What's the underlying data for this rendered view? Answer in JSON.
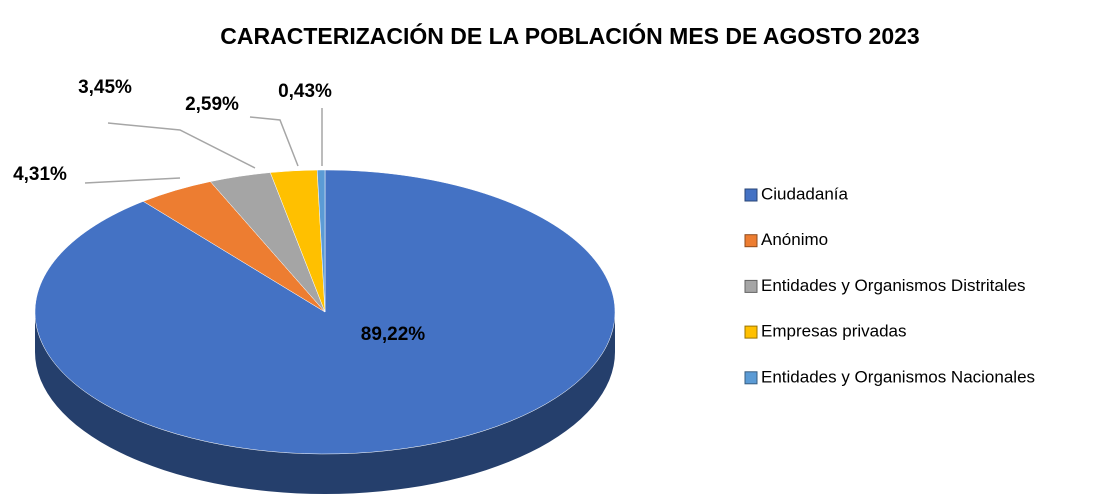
{
  "chart_data": {
    "type": "pie",
    "title": "CARACTERIZACIÓN DE LA POBLACIÓN MES DE AGOSTO 2023",
    "categories": [
      "Ciudadanía",
      "Anónimo",
      "Entidades y Organismos Distritales",
      "Empresas privadas",
      "Entidades y Organismos Nacionales"
    ],
    "values": [
      89.22,
      4.31,
      3.45,
      2.59,
      0.43
    ],
    "value_labels": [
      "89,22%",
      "4,31%",
      "3,45%",
      "2,59%",
      "0,43%"
    ],
    "colors": [
      "#4472c4",
      "#ed7d31",
      "#a5a5a5",
      "#ffc000",
      "#5b9bd5"
    ],
    "legend": "right"
  }
}
